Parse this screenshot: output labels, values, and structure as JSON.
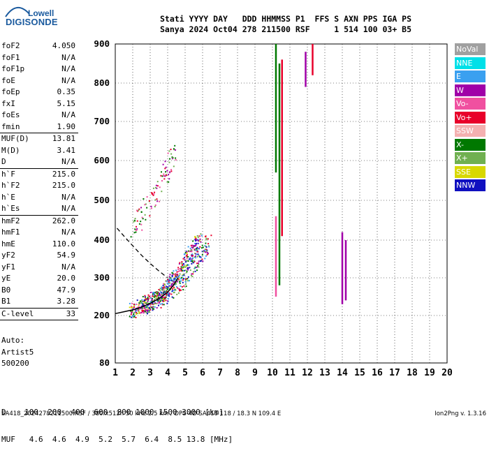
{
  "logo": {
    "line1": "Lowell",
    "line2": "DIGISONDE"
  },
  "header": {
    "row1": "Stati YYYY DAY   DDD HHMMSS P1  FFS S AXN PPS IGA PS",
    "row2": "Sanya 2024 Oct04 278 211500 RSF     1 514 100 03+ B5"
  },
  "params": [
    {
      "name": "foF2",
      "value": "4.050"
    },
    {
      "name": "foF1",
      "value": "N/A"
    },
    {
      "name": "foF1p",
      "value": "N/A"
    },
    {
      "name": "foE",
      "value": "N/A"
    },
    {
      "name": "foEp",
      "value": "0.35"
    },
    {
      "name": "fxI",
      "value": "5.15"
    },
    {
      "name": "foEs",
      "value": "N/A"
    },
    {
      "name": "fmin",
      "value": "1.90",
      "sep": true
    },
    {
      "name": "MUF(D)",
      "value": "13.81"
    },
    {
      "name": "M(D)",
      "value": "3.41"
    },
    {
      "name": "D",
      "value": "N/A",
      "sep": true
    },
    {
      "name": "h`F",
      "value": "215.0"
    },
    {
      "name": "h`F2",
      "value": "215.0"
    },
    {
      "name": "h`E",
      "value": "N/A"
    },
    {
      "name": "h`Es",
      "value": "N/A",
      "sep": true
    },
    {
      "name": "hmF2",
      "value": "262.0"
    },
    {
      "name": "hmF1",
      "value": "N/A"
    },
    {
      "name": "hmE",
      "value": "110.0"
    },
    {
      "name": "yF2",
      "value": "54.9"
    },
    {
      "name": "yF1",
      "value": "N/A"
    },
    {
      "name": "yE",
      "value": "20.0"
    },
    {
      "name": "B0",
      "value": "47.9"
    },
    {
      "name": "B1",
      "value": "3.28",
      "sep": true
    },
    {
      "name": "C-level",
      "value": "33",
      "sep": true
    }
  ],
  "auto": {
    "line1": "Auto:",
    "line2": "Artist5",
    "line3": "500200"
  },
  "dm_table": {
    "row1": "D    100  200  400  600  800 1000 1500 3000 [km]",
    "row2": "MUF   4.6  4.6  4.9  5.2  5.7  6.4  8.5 13.8 [MHz]"
  },
  "footer": {
    "left": "SA418_2024278211500.RSF / 380fx512h 50 kHz 2.5 km / DPS-4D SA418 118 / 18.3 N 109.4 E",
    "right": "Ion2Png v. 1.3.16"
  },
  "legend": [
    {
      "label": "NoVal",
      "color": "#a0a0a0"
    },
    {
      "label": "NNE",
      "color": "#00e0e8"
    },
    {
      "label": "E",
      "color": "#3aa0f0"
    },
    {
      "label": "W",
      "color": "#a000a8"
    },
    {
      "label": "Vo-",
      "color": "#f050a0"
    },
    {
      "label": "Vo+",
      "color": "#e8002a"
    },
    {
      "label": "SSW",
      "color": "#f4b0b0"
    },
    {
      "label": "X-",
      "color": "#007800"
    },
    {
      "label": "X+",
      "color": "#70b050"
    },
    {
      "label": "SSE",
      "color": "#d8d800"
    },
    {
      "label": "NNW",
      "color": "#1010c0"
    }
  ],
  "chart_data": {
    "type": "scatter",
    "x_ticks": [
      "1",
      "2",
      "3",
      "4",
      "5",
      "6",
      "7",
      "8",
      "9",
      "10",
      "11",
      "12",
      "13",
      "14",
      "15",
      "16",
      "17",
      "18",
      "19",
      "20"
    ],
    "y_ticks": [
      "80",
      "200",
      "300",
      "400",
      "500",
      "600",
      "700",
      "800",
      "900"
    ],
    "xlim": [
      1,
      20
    ],
    "y_axis": "virtual height, nonlinear scale",
    "grid": true,
    "trace_O": [
      [
        1.9,
        215
      ],
      [
        2.2,
        220
      ],
      [
        2.6,
        228
      ],
      [
        3.0,
        238
      ],
      [
        3.4,
        250
      ],
      [
        3.7,
        262
      ],
      [
        4.0,
        278
      ],
      [
        4.3,
        298
      ],
      [
        4.7,
        322
      ],
      [
        5.1,
        352
      ],
      [
        5.5,
        385
      ],
      [
        5.8,
        410
      ]
    ],
    "trace_X": [
      [
        2.5,
        225
      ],
      [
        3.0,
        235
      ],
      [
        3.5,
        248
      ],
      [
        4.0,
        262
      ],
      [
        4.5,
        282
      ],
      [
        5.0,
        305
      ],
      [
        5.5,
        335
      ],
      [
        6.0,
        368
      ],
      [
        6.3,
        395
      ]
    ],
    "trace_2hop": [
      [
        1.9,
        430
      ],
      [
        2.3,
        455
      ],
      [
        2.7,
        480
      ],
      [
        3.1,
        505
      ],
      [
        3.5,
        535
      ],
      [
        3.9,
        570
      ],
      [
        4.2,
        600
      ],
      [
        4.4,
        640
      ]
    ],
    "profile_dashed": [
      [
        1.1,
        430
      ],
      [
        1.5,
        410
      ],
      [
        2.0,
        385
      ],
      [
        2.5,
        360
      ],
      [
        3.0,
        338
      ],
      [
        3.5,
        318
      ],
      [
        4.0,
        300
      ]
    ],
    "profile_solid": [
      [
        1.0,
        205
      ],
      [
        1.5,
        210
      ],
      [
        2.0,
        215
      ],
      [
        2.5,
        222
      ],
      [
        3.0,
        232
      ],
      [
        3.5,
        245
      ],
      [
        4.0,
        262
      ],
      [
        4.3,
        278
      ],
      [
        4.6,
        300
      ]
    ],
    "bars": [
      {
        "x": 10.2,
        "y0": 570,
        "y1": 900,
        "color": "#007800"
      },
      {
        "x": 10.2,
        "y0": 250,
        "y1": 460,
        "color": "#f050a0"
      },
      {
        "x": 10.4,
        "y0": 280,
        "y1": 850,
        "color": "#007800"
      },
      {
        "x": 10.55,
        "y0": 410,
        "y1": 860,
        "color": "#e8002a"
      },
      {
        "x": 14.0,
        "y0": 230,
        "y1": 420,
        "color": "#a000a8"
      },
      {
        "x": 14.2,
        "y0": 240,
        "y1": 400,
        "color": "#a000a8"
      },
      {
        "x": 12.3,
        "y0": 820,
        "y1": 900,
        "color": "#e8002a"
      },
      {
        "x": 11.9,
        "y0": 790,
        "y1": 880,
        "color": "#a000a8"
      }
    ]
  }
}
